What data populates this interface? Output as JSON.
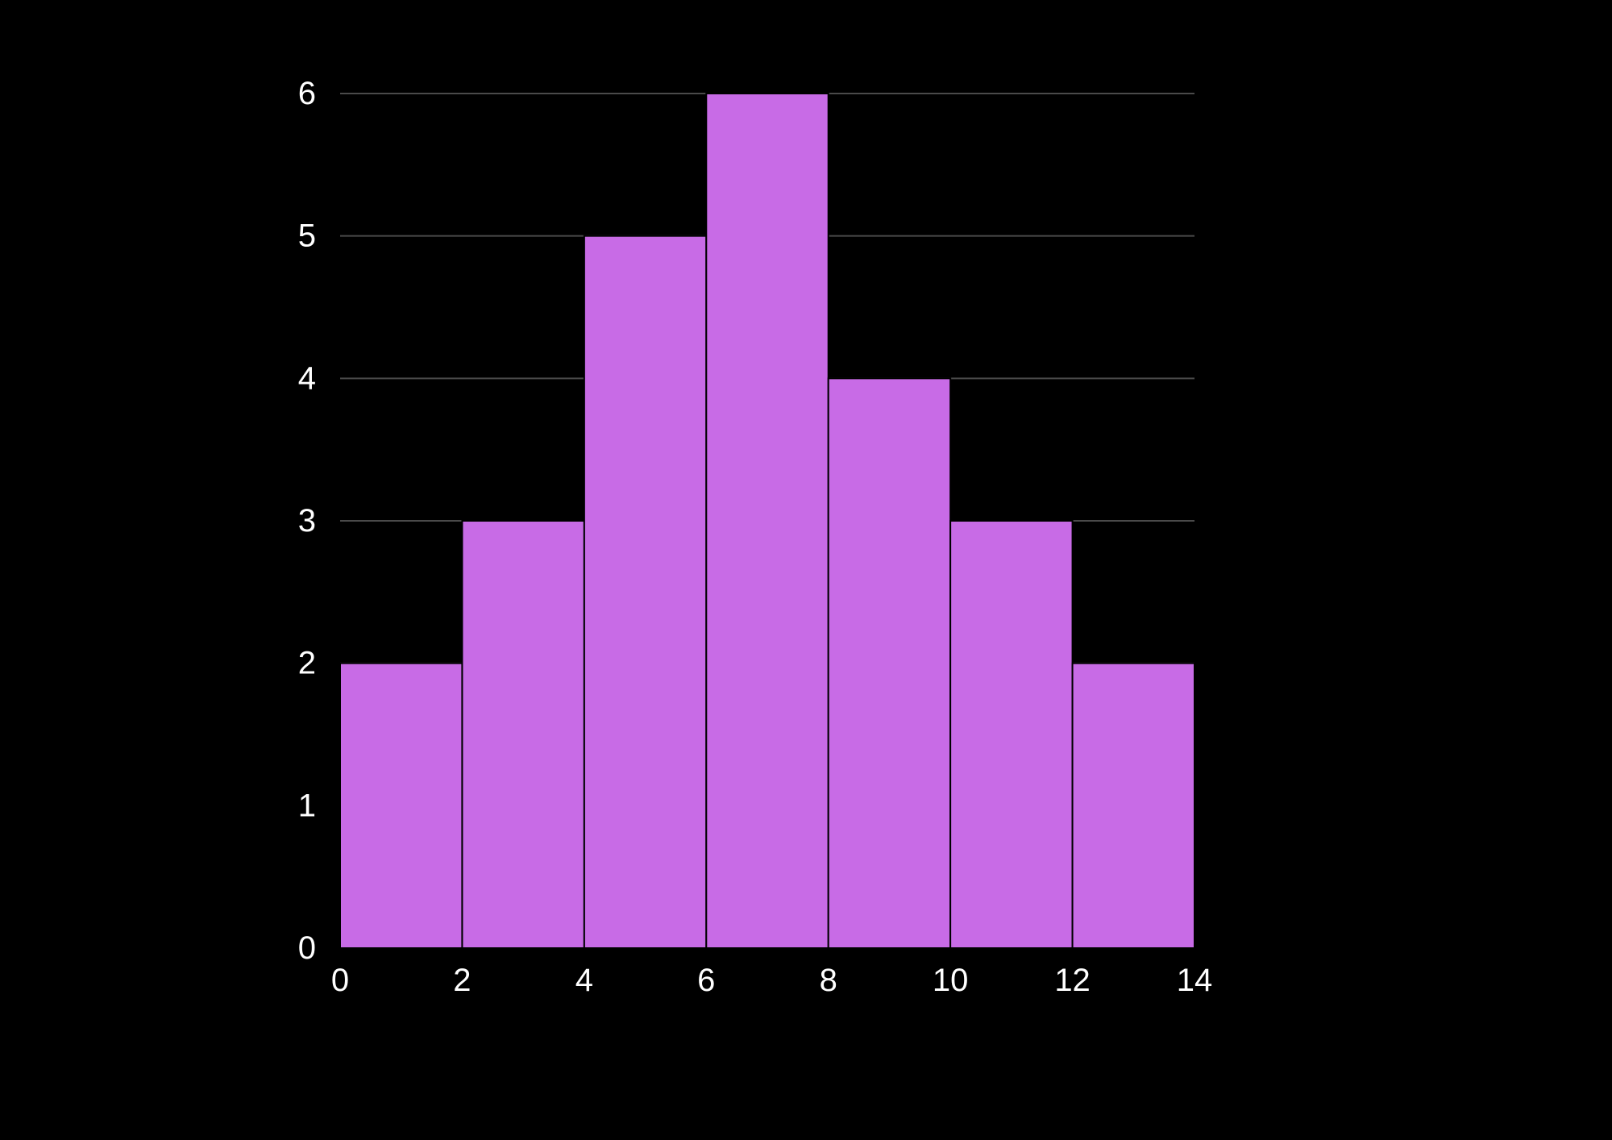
{
  "chart_data": {
    "type": "bar",
    "bins": [
      {
        "x0": 0,
        "x1": 2,
        "count": 2
      },
      {
        "x0": 2,
        "x1": 4,
        "count": 3
      },
      {
        "x0": 4,
        "x1": 6,
        "count": 5
      },
      {
        "x0": 6,
        "x1": 8,
        "count": 6
      },
      {
        "x0": 8,
        "x1": 10,
        "count": 4
      },
      {
        "x0": 10,
        "x1": 12,
        "count": 3
      },
      {
        "x0": 12,
        "x1": 14,
        "count": 2
      }
    ],
    "xlim": [
      0,
      14
    ],
    "ylim": [
      0,
      6
    ],
    "x_ticks": [
      "0",
      "2",
      "4",
      "6",
      "8",
      "10",
      "12",
      "14"
    ],
    "y_ticks": [
      "0",
      "1",
      "2",
      "3",
      "4",
      "5",
      "6"
    ],
    "grid": "horizontal",
    "legend": "none",
    "colors": {
      "background": "#000000",
      "bar_fill": "#c86be6",
      "bar_edge": "#000000",
      "grid": "#4a4a4a",
      "text": "#ffffff"
    }
  }
}
